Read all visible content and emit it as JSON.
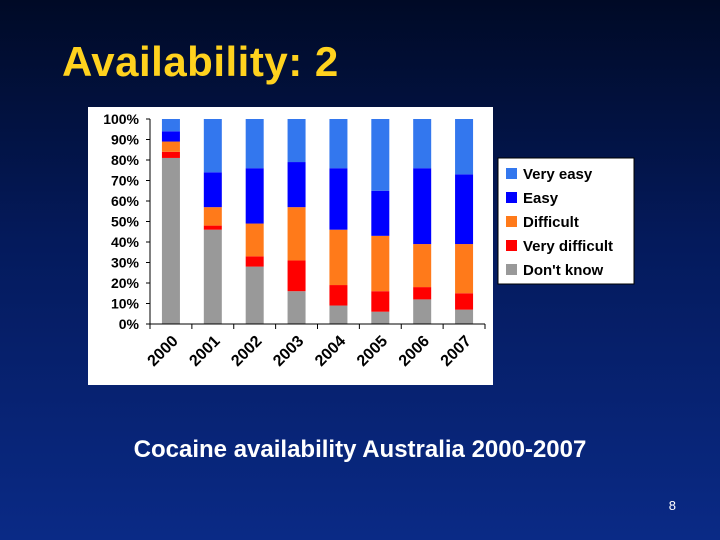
{
  "slide": {
    "title": "Availability: 2",
    "caption": "Cocaine availability Australia 2000-2007",
    "page_number": "8"
  },
  "chart_data": {
    "type": "bar",
    "stacked": true,
    "categories": [
      "2000",
      "2001",
      "2002",
      "2003",
      "2004",
      "2005",
      "2006",
      "2007"
    ],
    "ylim": [
      0,
      100
    ],
    "yticks": [
      "0%",
      "10%",
      "20%",
      "30%",
      "40%",
      "50%",
      "60%",
      "70%",
      "80%",
      "90%",
      "100%"
    ],
    "legend_position": "right",
    "series": [
      {
        "name": "Don't know",
        "color": "#999999",
        "values": [
          81,
          46,
          28,
          16,
          9,
          6,
          12,
          7
        ]
      },
      {
        "name": "Very difficult",
        "color": "#ff0000",
        "values": [
          3,
          2,
          5,
          15,
          10,
          10,
          6,
          8
        ]
      },
      {
        "name": "Difficult",
        "color": "#ff7a1a",
        "values": [
          5,
          9,
          16,
          26,
          27,
          27,
          21,
          24
        ]
      },
      {
        "name": "Easy",
        "color": "#0000ff",
        "values": [
          5,
          17,
          27,
          22,
          30,
          22,
          37,
          34
        ]
      },
      {
        "name": "Very easy",
        "color": "#3377ee",
        "values": [
          6,
          26,
          24,
          21,
          24,
          35,
          24,
          27
        ]
      }
    ]
  }
}
